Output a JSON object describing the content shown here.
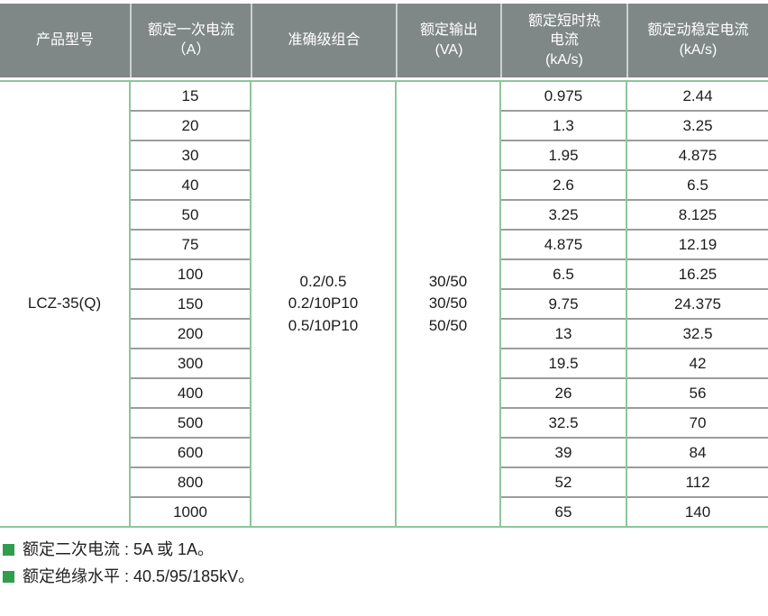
{
  "colors": {
    "header_bg": "#7f8887",
    "grid_green": "#8cc69b",
    "row_separator_gray": "#9c9c9c",
    "bullet_green": "#2f9e4e"
  },
  "table": {
    "headers": [
      "产品型号",
      "额定一次电流\n（A）",
      "准确级组合",
      "额定输出\n(VA)",
      "额定短时热\n电流\n(kA/s)",
      "额定动稳定电流\n(kA/s)"
    ],
    "product_model": "LCZ-35(Q)",
    "accuracy_combination": "0.2/0.5\n0.2/10P10\n0.5/10P10",
    "rated_output": "30/50\n30/50\n50/50",
    "rows": [
      {
        "primary_current": "15",
        "thermal": "0.975",
        "dynamic": "2.44"
      },
      {
        "primary_current": "20",
        "thermal": "1.3",
        "dynamic": "3.25"
      },
      {
        "primary_current": "30",
        "thermal": "1.95",
        "dynamic": "4.875"
      },
      {
        "primary_current": "40",
        "thermal": "2.6",
        "dynamic": "6.5"
      },
      {
        "primary_current": "50",
        "thermal": "3.25",
        "dynamic": "8.125"
      },
      {
        "primary_current": "75",
        "thermal": "4.875",
        "dynamic": "12.19"
      },
      {
        "primary_current": "100",
        "thermal": "6.5",
        "dynamic": "16.25"
      },
      {
        "primary_current": "150",
        "thermal": "9.75",
        "dynamic": "24.375"
      },
      {
        "primary_current": "200",
        "thermal": "13",
        "dynamic": "32.5"
      },
      {
        "primary_current": "300",
        "thermal": "19.5",
        "dynamic": "42"
      },
      {
        "primary_current": "400",
        "thermal": "26",
        "dynamic": "56"
      },
      {
        "primary_current": "500",
        "thermal": "32.5",
        "dynamic": "70"
      },
      {
        "primary_current": "600",
        "thermal": "39",
        "dynamic": "84"
      },
      {
        "primary_current": "800",
        "thermal": "52",
        "dynamic": "112"
      },
      {
        "primary_current": "1000",
        "thermal": "65",
        "dynamic": "140"
      }
    ]
  },
  "notes": [
    {
      "text": "额定二次电流 : 5A 或 1A。"
    },
    {
      "text": "额定绝缘水平 : 40.5/95/185kV。"
    }
  ]
}
